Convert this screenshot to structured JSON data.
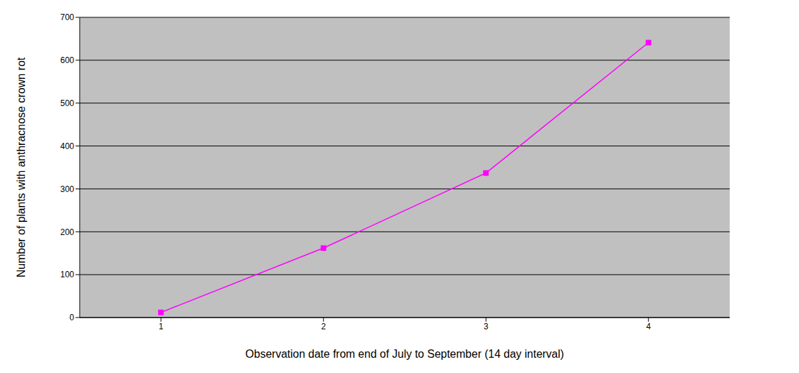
{
  "chart_data": {
    "type": "line",
    "x_label": "Observation date from end of July to September (14 day interval)",
    "y_label": "Number of plants with anthracnose crown rot",
    "categories": [
      1,
      2,
      3,
      4
    ],
    "values": [
      12,
      162,
      337,
      641
    ],
    "color": "#ff00ff",
    "marker": "square",
    "ylim": [
      0,
      700
    ],
    "yticks": [
      0,
      100,
      200,
      300,
      400,
      500,
      600,
      700
    ],
    "grid": true
  }
}
